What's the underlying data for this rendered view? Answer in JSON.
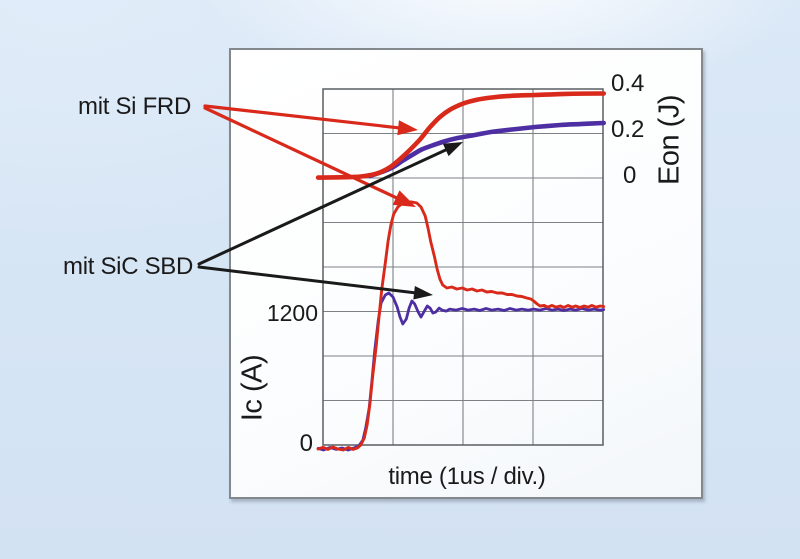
{
  "chart_data": {
    "type": "line",
    "title": "",
    "xlabel": "time (1us / div.)",
    "x_divisions": 4,
    "grid": true,
    "y_left": {
      "label": "Ic (A)",
      "ticks": [
        "1200",
        "0"
      ],
      "units_per_div": 400,
      "range_shown": [
        0,
        2400
      ]
    },
    "y_right": {
      "label": "Eon (J)",
      "ticks": [
        "0.4",
        "0.2",
        "0"
      ],
      "units_per_div": 0.2,
      "range_shown": [
        0,
        0.4
      ]
    },
    "annotations": [
      {
        "label": "mit Si FRD",
        "color": "#d9291b",
        "points_to": [
          "Eon red curve",
          "Ic red overshoot peak"
        ]
      },
      {
        "label": "mit SiC SBD",
        "color": "#1a1a1a",
        "points_to": [
          "Eon blue curve",
          "Ic blue ringing"
        ]
      }
    ],
    "series": [
      {
        "name": "Eon mit SiC SBD",
        "axis": "right",
        "color": "#4d2fa3",
        "width": 4.6,
        "smooth": true,
        "points": [
          [
            0.67,
            0.009
          ],
          [
            0.84,
            0.027
          ],
          [
            0.99,
            0.047
          ],
          [
            1.13,
            0.076
          ],
          [
            1.27,
            0.103
          ],
          [
            1.41,
            0.128
          ],
          [
            1.56,
            0.146
          ],
          [
            1.73,
            0.164
          ],
          [
            1.93,
            0.18
          ],
          [
            2.16,
            0.193
          ],
          [
            2.41,
            0.207
          ],
          [
            2.7,
            0.218
          ],
          [
            3.03,
            0.229
          ],
          [
            3.39,
            0.238
          ],
          [
            3.7,
            0.243
          ],
          [
            4.01,
            0.247
          ]
        ]
      },
      {
        "name": "Eon mit Si FRD",
        "axis": "right",
        "color": "#d9291b",
        "width": 4.6,
        "smooth": true,
        "points": [
          [
            -0.07,
            0.002
          ],
          [
            0.39,
            0.004
          ],
          [
            0.6,
            0.009
          ],
          [
            0.79,
            0.022
          ],
          [
            0.96,
            0.049
          ],
          [
            1.1,
            0.085
          ],
          [
            1.24,
            0.126
          ],
          [
            1.39,
            0.175
          ],
          [
            1.53,
            0.229
          ],
          [
            1.67,
            0.274
          ],
          [
            1.81,
            0.306
          ],
          [
            1.99,
            0.333
          ],
          [
            2.19,
            0.351
          ],
          [
            2.41,
            0.362
          ],
          [
            2.67,
            0.369
          ],
          [
            3.03,
            0.373
          ],
          [
            3.46,
            0.378
          ],
          [
            4.01,
            0.38
          ]
        ]
      },
      {
        "name": "Ic mit SiC SBD",
        "axis": "left",
        "color": "#4d2fa3",
        "width": 2.8,
        "smooth": false,
        "points": [
          [
            -0.07,
            -31
          ],
          [
            0.01,
            -45
          ],
          [
            0.1,
            -22
          ],
          [
            0.19,
            -40
          ],
          [
            0.27,
            -27
          ],
          [
            0.36,
            -45
          ],
          [
            0.44,
            -27
          ],
          [
            0.51,
            -9
          ],
          [
            0.57,
            45
          ],
          [
            0.61,
            153
          ],
          [
            0.66,
            333
          ],
          [
            0.7,
            584
          ],
          [
            0.74,
            854
          ],
          [
            0.79,
            1124
          ],
          [
            0.83,
            1276
          ],
          [
            0.89,
            1348
          ],
          [
            0.94,
            1366
          ],
          [
            1.0,
            1330
          ],
          [
            1.06,
            1240
          ],
          [
            1.1,
            1151
          ],
          [
            1.14,
            1088
          ],
          [
            1.19,
            1133
          ],
          [
            1.23,
            1231
          ],
          [
            1.27,
            1294
          ],
          [
            1.31,
            1267
          ],
          [
            1.36,
            1195
          ],
          [
            1.4,
            1151
          ],
          [
            1.44,
            1195
          ],
          [
            1.49,
            1249
          ],
          [
            1.53,
            1231
          ],
          [
            1.57,
            1186
          ],
          [
            1.61,
            1195
          ],
          [
            1.66,
            1231
          ],
          [
            1.7,
            1213
          ],
          [
            1.76,
            1204
          ],
          [
            1.81,
            1222
          ],
          [
            1.9,
            1213
          ],
          [
            1.99,
            1227
          ],
          [
            2.07,
            1213
          ],
          [
            2.16,
            1222
          ],
          [
            2.24,
            1209
          ],
          [
            2.33,
            1227
          ],
          [
            2.41,
            1213
          ],
          [
            2.5,
            1222
          ],
          [
            2.59,
            1209
          ],
          [
            2.67,
            1227
          ],
          [
            2.76,
            1213
          ],
          [
            2.84,
            1222
          ],
          [
            2.93,
            1213
          ],
          [
            3.01,
            1222
          ],
          [
            3.1,
            1213
          ],
          [
            3.19,
            1227
          ],
          [
            3.27,
            1213
          ],
          [
            3.36,
            1222
          ],
          [
            3.44,
            1209
          ],
          [
            3.53,
            1222
          ],
          [
            3.61,
            1213
          ],
          [
            3.7,
            1227
          ],
          [
            3.79,
            1213
          ],
          [
            3.87,
            1222
          ],
          [
            3.96,
            1213
          ],
          [
            4.01,
            1217
          ]
        ]
      },
      {
        "name": "Ic mit Si FRD",
        "axis": "left",
        "color": "#d9291b",
        "width": 2.9,
        "smooth": false,
        "points": [
          [
            -0.07,
            -36
          ],
          [
            0.0,
            -22
          ],
          [
            0.07,
            -40
          ],
          [
            0.14,
            -18
          ],
          [
            0.21,
            -36
          ],
          [
            0.29,
            -45
          ],
          [
            0.36,
            -22
          ],
          [
            0.43,
            -40
          ],
          [
            0.49,
            -27
          ],
          [
            0.54,
            0
          ],
          [
            0.59,
            63
          ],
          [
            0.63,
            180
          ],
          [
            0.67,
            369
          ],
          [
            0.71,
            620
          ],
          [
            0.76,
            890
          ],
          [
            0.8,
            1151
          ],
          [
            0.84,
            1402
          ],
          [
            0.89,
            1636
          ],
          [
            0.93,
            1834
          ],
          [
            0.97,
            1978
          ],
          [
            1.01,
            2076
          ],
          [
            1.07,
            2139
          ],
          [
            1.13,
            2171
          ],
          [
            1.2,
            2184
          ],
          [
            1.27,
            2184
          ],
          [
            1.34,
            2175
          ],
          [
            1.4,
            2139
          ],
          [
            1.46,
            2058
          ],
          [
            1.5,
            1951
          ],
          [
            1.54,
            1825
          ],
          [
            1.59,
            1699
          ],
          [
            1.63,
            1582
          ],
          [
            1.67,
            1492
          ],
          [
            1.71,
            1438
          ],
          [
            1.77,
            1411
          ],
          [
            1.84,
            1420
          ],
          [
            1.91,
            1402
          ],
          [
            1.99,
            1411
          ],
          [
            2.06,
            1393
          ],
          [
            2.13,
            1402
          ],
          [
            2.2,
            1384
          ],
          [
            2.27,
            1393
          ],
          [
            2.34,
            1375
          ],
          [
            2.41,
            1380
          ],
          [
            2.49,
            1366
          ],
          [
            2.56,
            1366
          ],
          [
            2.63,
            1353
          ],
          [
            2.7,
            1353
          ],
          [
            2.77,
            1339
          ],
          [
            2.84,
            1335
          ],
          [
            2.91,
            1321
          ],
          [
            2.97,
            1312
          ],
          [
            3.01,
            1294
          ],
          [
            3.06,
            1267
          ],
          [
            3.1,
            1249
          ],
          [
            3.16,
            1254
          ],
          [
            3.21,
            1240
          ],
          [
            3.27,
            1254
          ],
          [
            3.33,
            1240
          ],
          [
            3.39,
            1249
          ],
          [
            3.44,
            1236
          ],
          [
            3.5,
            1254
          ],
          [
            3.56,
            1240
          ],
          [
            3.61,
            1249
          ],
          [
            3.67,
            1236
          ],
          [
            3.73,
            1249
          ],
          [
            3.79,
            1240
          ],
          [
            3.84,
            1254
          ],
          [
            3.9,
            1240
          ],
          [
            3.96,
            1249
          ],
          [
            4.01,
            1245
          ]
        ]
      }
    ]
  }
}
